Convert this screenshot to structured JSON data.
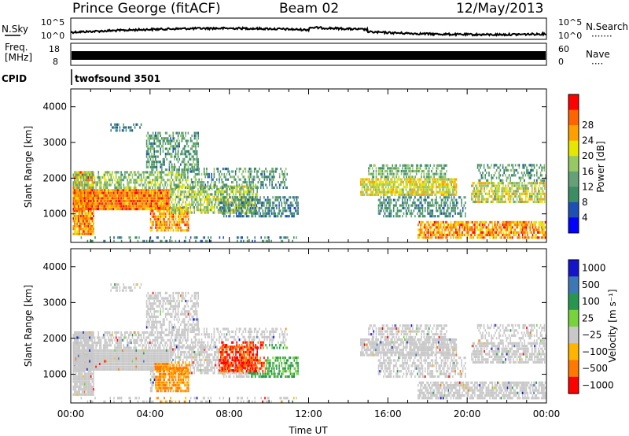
{
  "header": {
    "station": "Prince George (fitACF)",
    "beam": "Beam 02",
    "date": "12/May/2013"
  },
  "panels": {
    "nsky": {
      "label": "N.Sky",
      "right_label": "N.Search",
      "right_dots": "·······",
      "tick_top": "10^5",
      "tick_bottom": "10^0"
    },
    "freq": {
      "label_top": "Freq.",
      "label_unit": "[MHz]",
      "tick_top": "18",
      "tick_bottom": "8",
      "right_label": "Nave",
      "right_dots": "····",
      "right_tick_top": "60",
      "right_tick_bottom": "0"
    },
    "cpid": {
      "label": "CPID",
      "value": "twofsound 3501"
    }
  },
  "colors": {
    "power_scale": [
      "#0000ff",
      "#1e50b4",
      "#3c8c64",
      "#64a078",
      "#96c864",
      "#e6e600",
      "#ffa000",
      "#ff6400",
      "#ff0000"
    ],
    "velocity_scale": [
      "#1414c8",
      "#3c78b4",
      "#289650",
      "#78d23c",
      "#c8c8c8",
      "#ffb400",
      "#ff7800",
      "#ff0000"
    ]
  },
  "chart_data": [
    {
      "type": "heatmap",
      "name": "power",
      "ylabel": "Slant Range [km]",
      "xlabel": "",
      "ylim": [
        200,
        4500
      ],
      "xlim": [
        0,
        24
      ],
      "yticks": [
        "1000",
        "2000",
        "3000",
        "4000"
      ],
      "colorbar_label": "Power [dB]",
      "colorbar_ticks": [
        "4",
        "8",
        "12",
        "16",
        "20",
        "24",
        "28"
      ],
      "colorbar_range": [
        0,
        32
      ]
    },
    {
      "type": "heatmap",
      "name": "velocity",
      "ylabel": "Slant Range [km]",
      "xlabel": "Time UT",
      "ylim": [
        200,
        4500
      ],
      "xlim": [
        0,
        24
      ],
      "yticks": [
        "1000",
        "2000",
        "3000",
        "4000"
      ],
      "xticks": [
        "00:00",
        "04:00",
        "08:00",
        "12:00",
        "16:00",
        "20:00",
        "00:00"
      ],
      "colorbar_label": "Velocity [m s⁻¹]",
      "colorbar_ticks": [
        "1000",
        "500",
        "100",
        "25",
        "−25",
        "−100",
        "−500",
        "−1000"
      ]
    }
  ]
}
